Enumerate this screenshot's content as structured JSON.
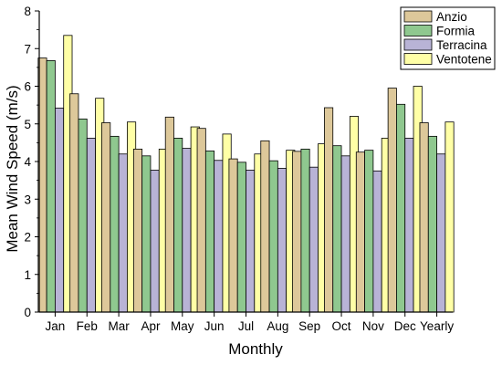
{
  "chart_data": {
    "type": "bar",
    "xlabel": "Monthly",
    "ylabel": "Mean Wind Speed (m/s)",
    "ylim": [
      0,
      8
    ],
    "yticks": [
      "0",
      "1",
      "2",
      "3",
      "4",
      "5",
      "6",
      "7",
      "8"
    ],
    "categories": [
      "Jan",
      "Feb",
      "Mar",
      "Apr",
      "May",
      "Jun",
      "Jul",
      "Aug",
      "Sep",
      "Oct",
      "Nov",
      "Dec",
      "Yearly"
    ],
    "legend_position": "top-right",
    "grid": false,
    "series": [
      {
        "name": "Anzio",
        "color": "#DDC89A",
        "values": [
          6.75,
          5.8,
          5.03,
          4.33,
          5.18,
          4.88,
          4.07,
          4.55,
          4.27,
          5.43,
          4.25,
          5.95,
          5.03
        ]
      },
      {
        "name": "Formia",
        "color": "#8FC88F",
        "values": [
          6.68,
          5.13,
          4.67,
          4.15,
          4.62,
          4.28,
          3.98,
          4.02,
          4.33,
          4.42,
          4.3,
          5.52,
          4.67
        ]
      },
      {
        "name": "Terracina",
        "color": "#B8B3D6",
        "values": [
          5.42,
          4.62,
          4.2,
          3.77,
          4.35,
          4.03,
          3.77,
          3.82,
          3.85,
          4.15,
          3.75,
          4.62,
          4.2
        ]
      },
      {
        "name": "Ventotene",
        "color": "#FFFFA6",
        "values": [
          7.35,
          5.68,
          5.05,
          4.33,
          4.92,
          4.73,
          4.2,
          4.3,
          4.47,
          5.2,
          4.62,
          6.0,
          5.05
        ]
      }
    ]
  }
}
